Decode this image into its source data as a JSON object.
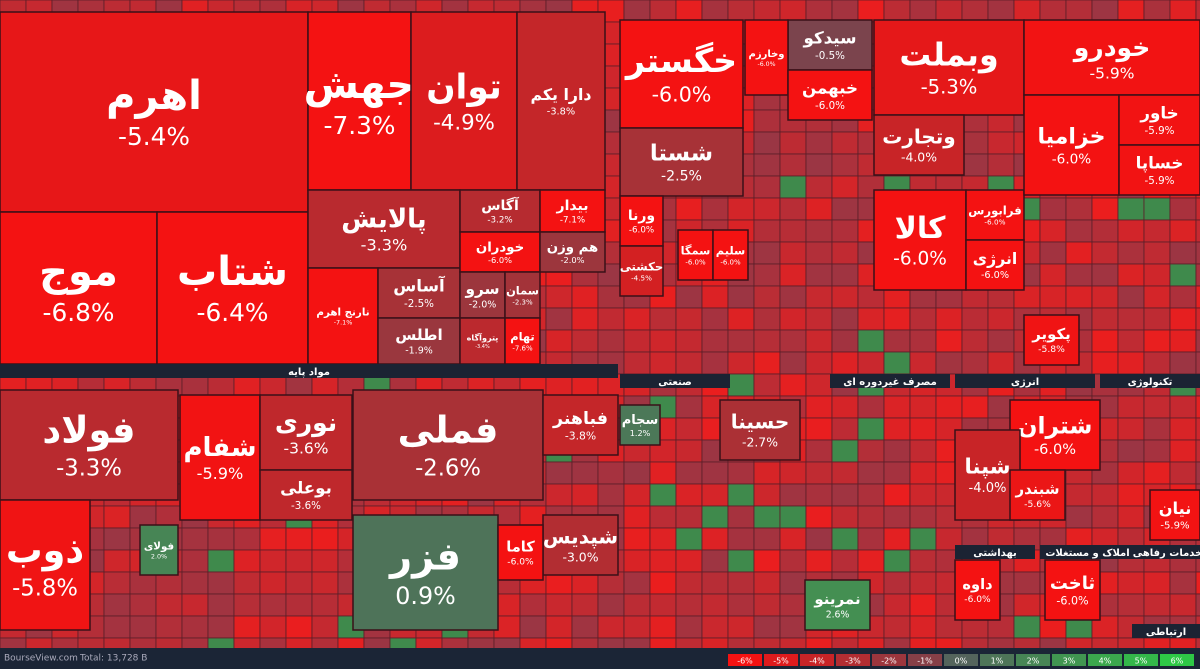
{
  "chart_data": {
    "type": "treemap",
    "categories": [
      "اهرم",
      "موج",
      "شتاب",
      "جهش",
      "توان",
      "دارا یکم",
      "پالایش",
      "نارنج اهرم",
      "آساس",
      "اطلس",
      "آگاس",
      "بیدار",
      "خودران",
      "هم وزن",
      "سرو",
      "سمان",
      "پتروآگاه",
      "تهام",
      "خگستر",
      "شستا",
      "سیدکو",
      "وخارزم",
      "خبهمن",
      "ورنا",
      "حکشتی",
      "سمگا",
      "سلیم",
      "وبملت",
      "وتجارت",
      "کالا",
      "فرابورس",
      "انرژی",
      "خودرو",
      "خزامیا",
      "خاور",
      "خساپا",
      "پکویر",
      "فولاد",
      "ذوب",
      "شفام",
      "نوری",
      "بوعلی",
      "فولای",
      "فملی",
      "فزر",
      "فباهنر",
      "شپدیس",
      "کاما",
      "سجام",
      "حسینا",
      "نمرینو",
      "شتران",
      "شپنا",
      "شبندر",
      "داوه",
      "ثاخت",
      "نیان"
    ],
    "values": [
      -5.4,
      -6.8,
      -6.4,
      -7.3,
      -4.9,
      -3.8,
      -3.3,
      -7.1,
      -2.5,
      -1.9,
      -3.2,
      -7.1,
      -6.0,
      -2.0,
      -2.0,
      -2.3,
      -3.4,
      -7.6,
      -6.0,
      -2.5,
      -0.5,
      -6.0,
      -6.0,
      -6.0,
      -4.5,
      -6.0,
      -6.0,
      -5.3,
      -4.0,
      -6.0,
      -6.0,
      -6.0,
      -5.9,
      -6.0,
      -5.9,
      -5.9,
      -5.8,
      -3.3,
      -5.8,
      -5.9,
      -3.6,
      -3.6,
      2.0,
      -2.6,
      0.9,
      -3.8,
      -3.0,
      -6.0,
      1.2,
      -2.7,
      2.6,
      -6.0,
      -4.0,
      -5.6,
      -6.0,
      -6.0,
      -5.9
    ],
    "value_labels": [
      "-5.4%",
      "-6.8%",
      "-6.4%",
      "-7.3%",
      "-4.9%",
      "-3.8%",
      "-3.3%",
      "-7.1%",
      "-2.5%",
      "-1.9%",
      "-3.2%",
      "-7.1%",
      "-6.0%",
      "-2.0%",
      "-2.0%",
      "-2.3%",
      "-3.4%",
      "-7.6%",
      "-6.0%",
      "-2.5%",
      "-0.5%",
      "-6.0%",
      "-6.0%",
      "-6.0%",
      "-4.5%",
      "-6.0%",
      "-6.0%",
      "-5.3%",
      "-4.0%",
      "-6.0%",
      "-6.0%",
      "-6.0%",
      "-5.9%",
      "-6.0%",
      "-5.9%",
      "-5.9%",
      "-5.8%",
      "-3.3%",
      "-5.8%",
      "-5.9%",
      "-3.6%",
      "-3.6%",
      "2.0%",
      "-2.6%",
      "0.9%",
      "-3.8%",
      "-3.0%",
      "-6.0%",
      "1.2%",
      "-2.7%",
      "2.6%",
      "-6.0%",
      "-4.0%",
      "-5.6%",
      "-6.0%",
      "-6.0%",
      "-5.9%"
    ],
    "sectors": [
      "مواد پایه",
      "صنعتی",
      "مصرف غیردوره ای",
      "انرژی",
      "تکنولوژی",
      "بهداشتی",
      "املاک و مستغلات",
      "خدمات رفاهی",
      "ارتباطی"
    ],
    "legend": [
      {
        "value": -6,
        "label": "-6%"
      },
      {
        "value": -5,
        "label": "-5%"
      },
      {
        "value": -4,
        "label": "-4%"
      },
      {
        "value": -3,
        "label": "-3%"
      },
      {
        "value": -2,
        "label": "-2%"
      },
      {
        "value": -1,
        "label": "-1%"
      },
      {
        "value": 0,
        "label": "0%"
      },
      {
        "value": 1,
        "label": "1%"
      },
      {
        "value": 2,
        "label": "2%"
      },
      {
        "value": 3,
        "label": "3%"
      },
      {
        "value": 4,
        "label": "4%"
      },
      {
        "value": 5,
        "label": "5%"
      },
      {
        "value": 6,
        "label": "6%"
      }
    ],
    "footer": {
      "site": "BourseView.com",
      "total": "Total: 13,728 B"
    }
  }
}
